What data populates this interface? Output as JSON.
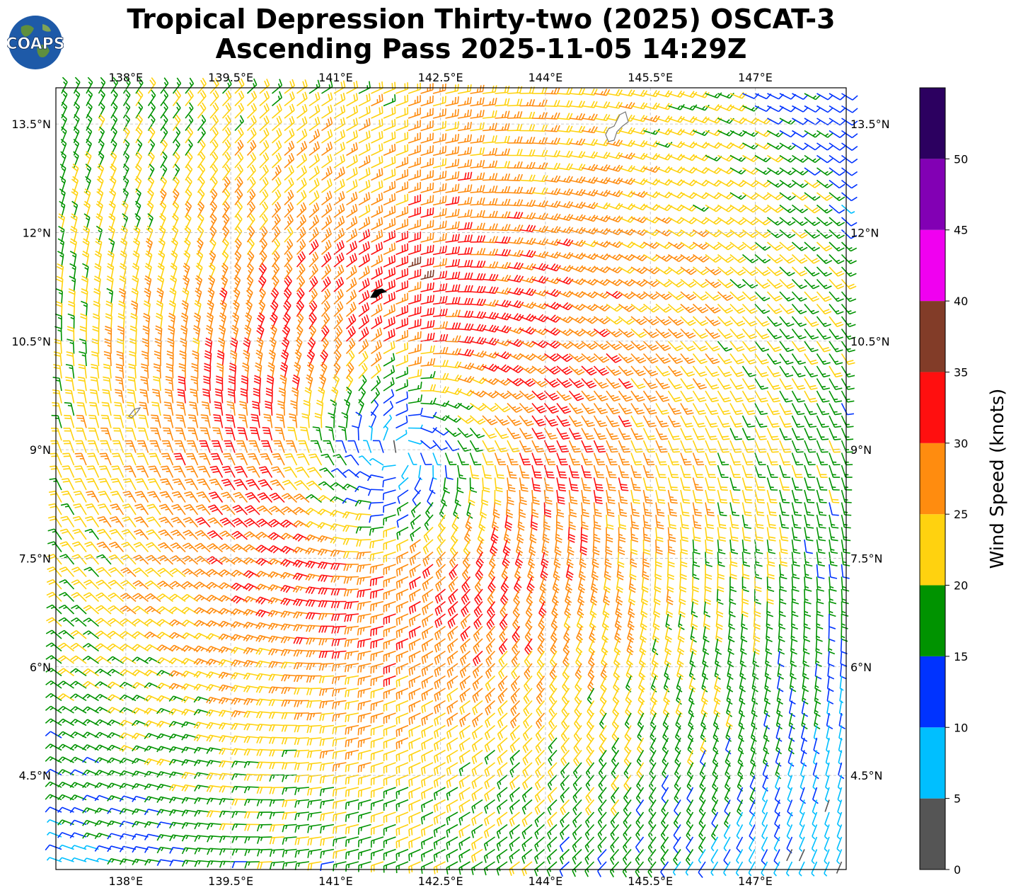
{
  "title": {
    "line1": "Tropical Depression Thirty-two (2025) OSCAT-3",
    "line2": "Ascending Pass 2025-11-05 14:29Z"
  },
  "logo": {
    "text": "COAPS",
    "icon": "coaps-globe-logo"
  },
  "map": {
    "lon_range": [
      137.0,
      148.3
    ],
    "lat_range": [
      3.2,
      14.0
    ],
    "lon_ticks": [
      "138°E",
      "139.5°E",
      "141°E",
      "142.5°E",
      "144°E",
      "145.5°E",
      "147°E"
    ],
    "lon_tick_values": [
      138.0,
      139.5,
      141.0,
      142.5,
      144.0,
      145.5,
      147.0
    ],
    "lat_ticks": [
      "13.5°N",
      "12°N",
      "10.5°N",
      "9°N",
      "7.5°N",
      "6°N",
      "4.5°N"
    ],
    "lat_tick_values": [
      13.5,
      12.0,
      10.5,
      9.0,
      7.5,
      6.0,
      4.5
    ],
    "grid": true,
    "storm_center": {
      "lon": 141.9,
      "lat": 8.95
    },
    "field_type": "wind barbs (cyclonic circulation)"
  },
  "colorbar": {
    "label": "Wind Speed (knots)",
    "tick_labels": [
      "0",
      "5",
      "10",
      "15",
      "20",
      "25",
      "30",
      "35",
      "40",
      "45",
      "50"
    ],
    "bins": [
      {
        "min": 0,
        "max": 5,
        "color": "#555555"
      },
      {
        "min": 5,
        "max": 10,
        "color": "#00BFFF"
      },
      {
        "min": 10,
        "max": 15,
        "color": "#0033FF"
      },
      {
        "min": 15,
        "max": 20,
        "color": "#009300"
      },
      {
        "min": 20,
        "max": 25,
        "color": "#FFD20F"
      },
      {
        "min": 25,
        "max": 30,
        "color": "#FF8C0F"
      },
      {
        "min": 30,
        "max": 35,
        "color": "#FF0F0F"
      },
      {
        "min": 35,
        "max": 40,
        "color": "#823C28"
      },
      {
        "min": 40,
        "max": 45,
        "color": "#F000F0"
      },
      {
        "min": 45,
        "max": 50,
        "color": "#8200B4"
      },
      {
        "min": 50,
        "max": 55,
        "color": "#2C0060"
      }
    ]
  }
}
